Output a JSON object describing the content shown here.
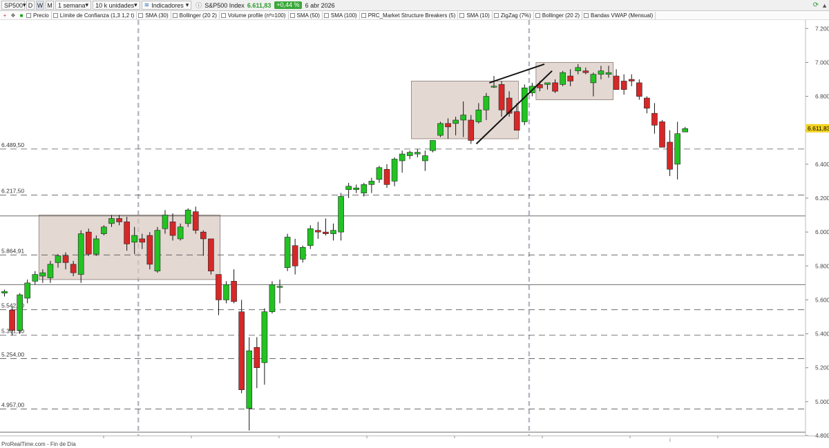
{
  "toolbar": {
    "symbol": "SP500",
    "timeframes": [
      "D",
      "W",
      "M"
    ],
    "active_timeframe": "W",
    "period": "1 semana",
    "units": "10 k unidades",
    "indicators_label": "Indicadores",
    "instrument": "S&P500 Index",
    "last_price": "6.611,83",
    "change_pct": "+0,44 %",
    "date": "6 abr 2026"
  },
  "indicators": [
    "Precio",
    "Límite de Confianza (1,3 1,2 t)",
    "SMA (30)",
    "Bollinger (20 2)",
    "Volume profile (nº=100)",
    "SMA (50)",
    "SMA (100)",
    "PRC_Market Structure Breakers (5)",
    "SMA (10)",
    "ZigZag (7%)",
    "Bollinger (20 2)",
    "Bandas VWAP  (Mensual)"
  ],
  "footer": "ProRealTime.com - Fin de Día",
  "colors": {
    "up": "#22c322",
    "down": "#d62828",
    "box": "#d9c7bf",
    "last_price_bg": "#f2d21e"
  },
  "chart_data": {
    "type": "candlestick",
    "y_axis": {
      "min": 4800,
      "max": 7250,
      "ticks": [
        7200,
        7000,
        6800,
        6600,
        6400,
        6200,
        6000,
        5800,
        5600,
        5400,
        5200,
        5000,
        4800
      ],
      "tick_labels": [
        "7.200",
        "7.000",
        "6.800",
        "6.600",
        "6.400",
        "6.200",
        "6.000",
        "5.800",
        "5.600",
        "5.400",
        "5.200",
        "5.000",
        "4.800"
      ],
      "position": "right"
    },
    "last_price": {
      "value": 6611.83,
      "label": "6.611,83"
    },
    "levels": [
      {
        "value": 6489.5,
        "label": "6.489,50"
      },
      {
        "value": 6217.5,
        "label": "6.217,50"
      },
      {
        "value": 5864.91,
        "label": "5.864,91"
      },
      {
        "value": 5542.0,
        "label": "5.542,00"
      },
      {
        "value": 5391.5,
        "label": "5.391,50"
      },
      {
        "value": 5254.0,
        "label": "5.254,00"
      },
      {
        "value": 4957.0,
        "label": "4.957,00"
      }
    ],
    "solid_levels": [
      6095,
      5690,
      4820
    ],
    "candles": [
      {
        "o": 5640,
        "h": 5660,
        "l": 5620,
        "c": 5650
      },
      {
        "o": 5540,
        "h": 5560,
        "l": 5390,
        "c": 5420
      },
      {
        "o": 5420,
        "h": 5640,
        "l": 5400,
        "c": 5630
      },
      {
        "o": 5610,
        "h": 5720,
        "l": 5580,
        "c": 5700
      },
      {
        "o": 5710,
        "h": 5770,
        "l": 5690,
        "c": 5750
      },
      {
        "o": 5740,
        "h": 5780,
        "l": 5700,
        "c": 5760
      },
      {
        "o": 5730,
        "h": 5830,
        "l": 5700,
        "c": 5810
      },
      {
        "o": 5820,
        "h": 5870,
        "l": 5790,
        "c": 5860
      },
      {
        "o": 5860,
        "h": 5880,
        "l": 5780,
        "c": 5820
      },
      {
        "o": 5810,
        "h": 5830,
        "l": 5740,
        "c": 5760
      },
      {
        "o": 5750,
        "h": 6010,
        "l": 5700,
        "c": 5990
      },
      {
        "o": 6000,
        "h": 6020,
        "l": 5860,
        "c": 5870
      },
      {
        "o": 5870,
        "h": 5980,
        "l": 5860,
        "c": 5960
      },
      {
        "o": 5990,
        "h": 6040,
        "l": 5980,
        "c": 6030
      },
      {
        "o": 6050,
        "h": 6100,
        "l": 6030,
        "c": 6080
      },
      {
        "o": 6080,
        "h": 6100,
        "l": 6040,
        "c": 6060
      },
      {
        "o": 6060,
        "h": 6090,
        "l": 5890,
        "c": 5930
      },
      {
        "o": 5940,
        "h": 6030,
        "l": 5870,
        "c": 5980
      },
      {
        "o": 5960,
        "h": 5990,
        "l": 5900,
        "c": 5940
      },
      {
        "o": 5980,
        "h": 6000,
        "l": 5780,
        "c": 5810
      },
      {
        "o": 5770,
        "h": 6030,
        "l": 5760,
        "c": 6010
      },
      {
        "o": 6020,
        "h": 6130,
        "l": 5990,
        "c": 6100
      },
      {
        "o": 6060,
        "h": 6110,
        "l": 5950,
        "c": 5980
      },
      {
        "o": 5960,
        "h": 6050,
        "l": 5950,
        "c": 6030
      },
      {
        "o": 6050,
        "h": 6140,
        "l": 6030,
        "c": 6130
      },
      {
        "o": 6120,
        "h": 6150,
        "l": 5990,
        "c": 6010
      },
      {
        "o": 6000,
        "h": 6010,
        "l": 5860,
        "c": 5960
      },
      {
        "o": 5960,
        "h": 5960,
        "l": 5750,
        "c": 5770
      },
      {
        "o": 5750,
        "h": 5750,
        "l": 5510,
        "c": 5600
      },
      {
        "o": 5600,
        "h": 5710,
        "l": 5580,
        "c": 5690
      },
      {
        "o": 5710,
        "h": 5780,
        "l": 5580,
        "c": 5590
      },
      {
        "o": 5530,
        "h": 5600,
        "l": 5050,
        "c": 5070
      },
      {
        "o": 4960,
        "h": 5380,
        "l": 4830,
        "c": 5300
      },
      {
        "o": 5320,
        "h": 5380,
        "l": 5080,
        "c": 5200
      },
      {
        "o": 5230,
        "h": 5550,
        "l": 5100,
        "c": 5530
      },
      {
        "o": 5530,
        "h": 5710,
        "l": 5520,
        "c": 5690
      },
      {
        "o": 5680,
        "h": 5720,
        "l": 5580,
        "c": 5680
      },
      {
        "o": 5790,
        "h": 5990,
        "l": 5770,
        "c": 5970
      },
      {
        "o": 5920,
        "h": 5960,
        "l": 5750,
        "c": 5800
      },
      {
        "o": 5840,
        "h": 5920,
        "l": 5820,
        "c": 5910
      },
      {
        "o": 5920,
        "h": 6040,
        "l": 5900,
        "c": 6020
      },
      {
        "o": 6010,
        "h": 6060,
        "l": 5960,
        "c": 6000
      },
      {
        "o": 6000,
        "h": 6080,
        "l": 5980,
        "c": 5990
      },
      {
        "o": 5990,
        "h": 6050,
        "l": 5950,
        "c": 6010
      },
      {
        "o": 6000,
        "h": 6230,
        "l": 5950,
        "c": 6210
      },
      {
        "o": 6250,
        "h": 6290,
        "l": 6200,
        "c": 6270
      },
      {
        "o": 6250,
        "h": 6280,
        "l": 6230,
        "c": 6260
      },
      {
        "o": 6230,
        "h": 6290,
        "l": 6210,
        "c": 6280
      },
      {
        "o": 6280,
        "h": 6320,
        "l": 6230,
        "c": 6300
      },
      {
        "o": 6310,
        "h": 6390,
        "l": 6290,
        "c": 6380
      },
      {
        "o": 6370,
        "h": 6400,
        "l": 6260,
        "c": 6280
      },
      {
        "o": 6300,
        "h": 6440,
        "l": 6270,
        "c": 6430
      },
      {
        "o": 6420,
        "h": 6480,
        "l": 6350,
        "c": 6460
      },
      {
        "o": 6450,
        "h": 6480,
        "l": 6430,
        "c": 6470
      },
      {
        "o": 6460,
        "h": 6490,
        "l": 6440,
        "c": 6470
      },
      {
        "o": 6420,
        "h": 6480,
        "l": 6360,
        "c": 6450
      },
      {
        "o": 6480,
        "h": 6540,
        "l": 6470,
        "c": 6540
      },
      {
        "o": 6570,
        "h": 6650,
        "l": 6560,
        "c": 6640
      },
      {
        "o": 6640,
        "h": 6670,
        "l": 6550,
        "c": 6620
      },
      {
        "o": 6640,
        "h": 6680,
        "l": 6570,
        "c": 6660
      },
      {
        "o": 6660,
        "h": 6770,
        "l": 6560,
        "c": 6690
      },
      {
        "o": 6660,
        "h": 6690,
        "l": 6520,
        "c": 6540
      },
      {
        "o": 6650,
        "h": 6760,
        "l": 6640,
        "c": 6720
      },
      {
        "o": 6720,
        "h": 6820,
        "l": 6660,
        "c": 6800
      },
      {
        "o": 6860,
        "h": 6920,
        "l": 6850,
        "c": 6860
      },
      {
        "o": 6870,
        "h": 6890,
        "l": 6680,
        "c": 6720
      },
      {
        "o": 6790,
        "h": 6830,
        "l": 6680,
        "c": 6700
      },
      {
        "o": 6710,
        "h": 6760,
        "l": 6600,
        "c": 6600
      },
      {
        "o": 6650,
        "h": 6870,
        "l": 6630,
        "c": 6850
      },
      {
        "o": 6820,
        "h": 6880,
        "l": 6800,
        "c": 6860
      },
      {
        "o": 6870,
        "h": 6890,
        "l": 6830,
        "c": 6850
      },
      {
        "o": 6870,
        "h": 6880,
        "l": 6840,
        "c": 6880
      },
      {
        "o": 6880,
        "h": 6900,
        "l": 6820,
        "c": 6830
      },
      {
        "o": 6870,
        "h": 6950,
        "l": 6860,
        "c": 6940
      },
      {
        "o": 6920,
        "h": 6960,
        "l": 6860,
        "c": 6890
      },
      {
        "o": 6950,
        "h": 6990,
        "l": 6930,
        "c": 6970
      },
      {
        "o": 6950,
        "h": 6970,
        "l": 6930,
        "c": 6940
      },
      {
        "o": 6880,
        "h": 6940,
        "l": 6800,
        "c": 6930
      },
      {
        "o": 6930,
        "h": 6980,
        "l": 6900,
        "c": 6950
      },
      {
        "o": 6930,
        "h": 6980,
        "l": 6910,
        "c": 6940
      },
      {
        "o": 6920,
        "h": 6960,
        "l": 6840,
        "c": 6840
      },
      {
        "o": 6890,
        "h": 6930,
        "l": 6810,
        "c": 6840
      },
      {
        "o": 6900,
        "h": 6930,
        "l": 6860,
        "c": 6890
      },
      {
        "o": 6880,
        "h": 6900,
        "l": 6780,
        "c": 6800
      },
      {
        "o": 6790,
        "h": 6800,
        "l": 6700,
        "c": 6730
      },
      {
        "o": 6700,
        "h": 6760,
        "l": 6580,
        "c": 6630
      },
      {
        "o": 6650,
        "h": 6660,
        "l": 6500,
        "c": 6500
      },
      {
        "o": 6530,
        "h": 6600,
        "l": 6330,
        "c": 6370
      },
      {
        "o": 6400,
        "h": 6650,
        "l": 6310,
        "c": 6580
      },
      {
        "o": 6590,
        "h": 6620,
        "l": 6590,
        "c": 6610
      }
    ],
    "boxes": [
      {
        "x0": 4.5,
        "x1": 28.2,
        "top": 6100,
        "bottom": 5720
      },
      {
        "x0": 53.2,
        "x1": 67.2,
        "top": 6890,
        "bottom": 6550
      },
      {
        "x0": 69.5,
        "x1": 79.6,
        "top": 7000,
        "bottom": 6780
      }
    ],
    "trendlines": [
      {
        "from": [
          61.7,
          6520
        ],
        "to": [
          71.6,
          6950
        ]
      },
      {
        "from": [
          63.4,
          6880
        ],
        "to": [
          70.6,
          6990
        ]
      }
    ],
    "vertical_separators": [
      17.5,
      68.6
    ]
  }
}
